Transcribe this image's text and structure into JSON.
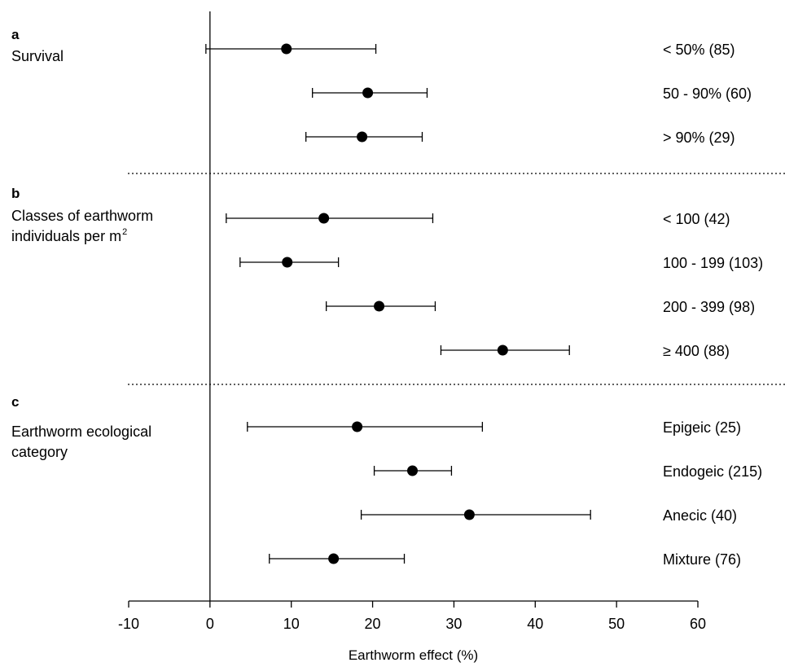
{
  "chart_data": {
    "type": "forest",
    "xlabel": "Earthworm effect (%)",
    "xlim": [
      -10,
      60
    ],
    "xticks": [
      -10,
      0,
      10,
      20,
      30,
      40,
      50,
      60
    ],
    "reference_line": 0,
    "panels": [
      {
        "letter": "a",
        "title_lines": [
          "Survival"
        ],
        "rows": [
          {
            "label": "< 50% (85)",
            "estimate": 9.4,
            "lower": -0.5,
            "upper": 20.4
          },
          {
            "label": "50 - 90% (60)",
            "estimate": 19.4,
            "lower": 12.6,
            "upper": 26.7
          },
          {
            "label": "> 90% (29)",
            "estimate": 18.7,
            "lower": 11.8,
            "upper": 26.1
          }
        ]
      },
      {
        "letter": "b",
        "title_lines": [
          "Classes of earthworm",
          "individuals per m"
        ],
        "title_superscript": "2",
        "rows": [
          {
            "label": "< 100 (42)",
            "estimate": 14.0,
            "lower": 2.0,
            "upper": 27.4
          },
          {
            "label": "100 - 199 (103)",
            "estimate": 9.5,
            "lower": 3.7,
            "upper": 15.8
          },
          {
            "label": "200 - 399 (98)",
            "estimate": 20.8,
            "lower": 14.3,
            "upper": 27.7
          },
          {
            "label": "≥ 400 (88)",
            "estimate": 36.0,
            "lower": 28.4,
            "upper": 44.2
          }
        ]
      },
      {
        "letter": "c",
        "title_lines": [
          "Earthworm ecological",
          "category"
        ],
        "rows": [
          {
            "label": "Epigeic (25)",
            "estimate": 18.1,
            "lower": 4.6,
            "upper": 33.5
          },
          {
            "label": "Endogeic (215)",
            "estimate": 24.9,
            "lower": 20.2,
            "upper": 29.7
          },
          {
            "label": "Anecic (40)",
            "estimate": 31.9,
            "lower": 18.6,
            "upper": 46.8
          },
          {
            "label": "Mixture (76)",
            "estimate": 15.2,
            "lower": 7.3,
            "upper": 23.9
          }
        ]
      }
    ]
  }
}
